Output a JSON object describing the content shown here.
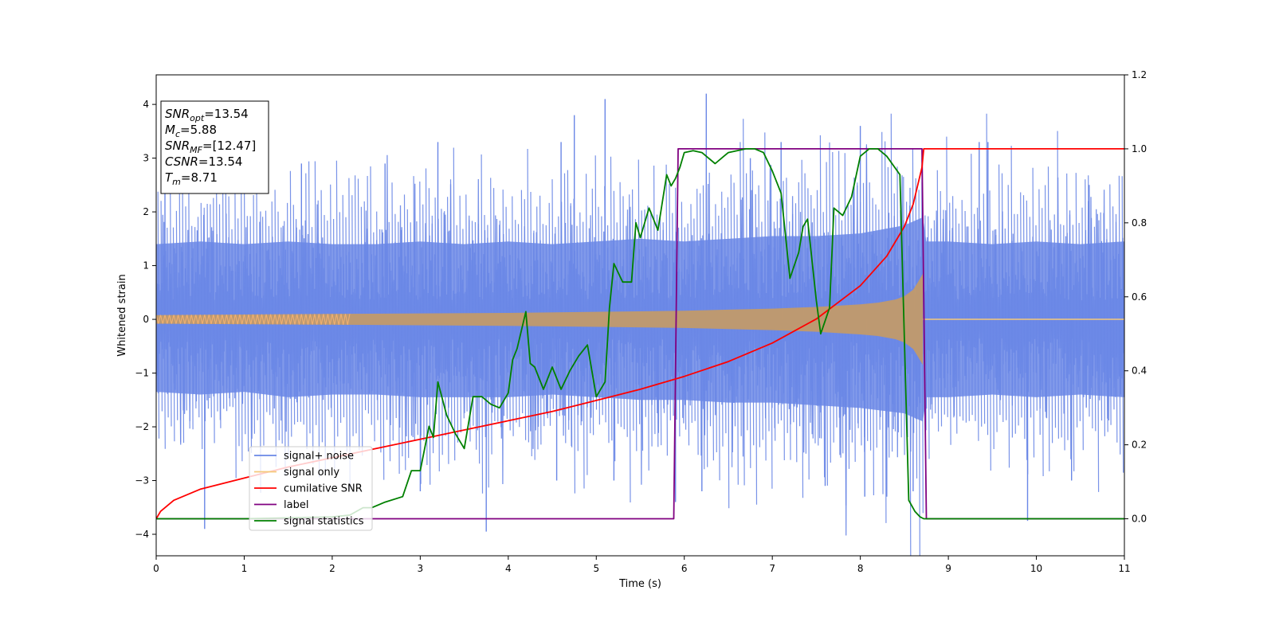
{
  "chart_data": {
    "type": "line",
    "xlabel": "Time (s)",
    "ylabel": "Whitened strain",
    "xlim": [
      0,
      11
    ],
    "ylim_left": [
      -4.4,
      4.55
    ],
    "ylim_right": [
      -0.1,
      1.2
    ],
    "x_ticks": [
      0,
      1,
      2,
      3,
      4,
      5,
      6,
      7,
      8,
      9,
      10,
      11
    ],
    "y_ticks_left": [
      -4,
      -3,
      -2,
      -1,
      0,
      1,
      2,
      3,
      4
    ],
    "y_ticks_right": [
      0.0,
      0.2,
      0.4,
      0.6,
      0.8,
      1.0,
      1.2
    ],
    "grid": false,
    "legend_position": "lower-left",
    "colors": {
      "noise": "#6a87e6",
      "signal": "#f5c97a",
      "cum_snr": "#ff0000",
      "label": "#800080",
      "stats": "#008000"
    },
    "annotation": {
      "lines": [
        {
          "base": "SNR",
          "sub": "opt",
          "value": "=13.54"
        },
        {
          "base": "M",
          "sub": "c",
          "value": "=5.88"
        },
        {
          "base": "SNR",
          "sub": "MF",
          "value": "=[12.47]"
        },
        {
          "base": "CSNR",
          "sub": "",
          "value": "=13.54"
        },
        {
          "base": "T",
          "sub": "m",
          "value": "=8.71"
        }
      ]
    },
    "series": [
      {
        "name": "signal+ noise",
        "axis": "left",
        "envelope": {
          "x": [
            0,
            0.5,
            1,
            1.5,
            2,
            2.5,
            3,
            3.5,
            4,
            4.5,
            5,
            5.5,
            6,
            6.5,
            7,
            7.5,
            8,
            8.5,
            8.71,
            8.75,
            9,
            9.5,
            10,
            10.5,
            11
          ],
          "upper": [
            1.4,
            1.45,
            1.4,
            1.45,
            1.4,
            1.4,
            1.45,
            1.4,
            1.45,
            1.4,
            1.45,
            1.5,
            1.45,
            1.5,
            1.55,
            1.55,
            1.6,
            1.75,
            1.9,
            1.45,
            1.45,
            1.4,
            1.45,
            1.4,
            1.45
          ],
          "lower": [
            -1.35,
            -1.4,
            -1.35,
            -1.45,
            -1.4,
            -1.4,
            -1.45,
            -1.45,
            -1.45,
            -1.4,
            -1.45,
            -1.5,
            -1.5,
            -1.55,
            -1.55,
            -1.6,
            -1.65,
            -1.75,
            -1.9,
            -1.45,
            -1.45,
            -1.4,
            -1.45,
            -1.4,
            -1.45
          ]
        },
        "peaks": [
          {
            "x": 0.55,
            "y": -3.9
          },
          {
            "x": 0.1,
            "y": 2.9
          },
          {
            "x": 1.65,
            "y": 2.9
          },
          {
            "x": 2.6,
            "y": 2.9
          },
          {
            "x": 3.0,
            "y": -3.2
          },
          {
            "x": 3.75,
            "y": -3.95
          },
          {
            "x": 3.2,
            "y": 3.3
          },
          {
            "x": 4.55,
            "y": -3.0
          },
          {
            "x": 4.6,
            "y": 3.3
          },
          {
            "x": 4.75,
            "y": 3.8
          },
          {
            "x": 5.1,
            "y": 4.1
          },
          {
            "x": 5.2,
            "y": -3.0
          },
          {
            "x": 5.9,
            "y": -3.4
          },
          {
            "x": 6.25,
            "y": 4.2
          },
          {
            "x": 6.2,
            "y": -3.2
          },
          {
            "x": 6.75,
            "y": 3.0
          },
          {
            "x": 7.1,
            "y": 3.3
          },
          {
            "x": 7.6,
            "y": -3.1
          },
          {
            "x": 8.0,
            "y": 3.6
          },
          {
            "x": 8.05,
            "y": -3.3
          },
          {
            "x": 8.3,
            "y": -3.3
          },
          {
            "x": 8.6,
            "y": -3.2
          },
          {
            "x": 8.7,
            "y": 3.0
          },
          {
            "x": 9.35,
            "y": 3.3
          },
          {
            "x": 9.45,
            "y": 3.3
          },
          {
            "x": 9.9,
            "y": -3.75
          },
          {
            "x": 10.6,
            "y": 2.5
          },
          {
            "x": 10.4,
            "y": -3.0
          }
        ]
      },
      {
        "name": "signal only",
        "axis": "left",
        "envelope": {
          "x": [
            0,
            1,
            2,
            3,
            4,
            5,
            6,
            6.5,
            7,
            7.5,
            8,
            8.2,
            8.4,
            8.5,
            8.6,
            8.65,
            8.71
          ],
          "amplitude": [
            0.08,
            0.09,
            0.1,
            0.11,
            0.12,
            0.14,
            0.16,
            0.18,
            0.2,
            0.23,
            0.28,
            0.31,
            0.37,
            0.43,
            0.55,
            0.68,
            0.85
          ]
        },
        "after_merger": {
          "x_start": 8.71,
          "value": 0.0
        }
      },
      {
        "name": "cumilative SNR",
        "axis": "right",
        "x": [
          0,
          0.05,
          0.2,
          0.5,
          1,
          1.5,
          2,
          2.5,
          3,
          3.5,
          4,
          4.5,
          5,
          5.5,
          6,
          6.5,
          7,
          7.5,
          8,
          8.3,
          8.5,
          8.6,
          8.7,
          8.72,
          11
        ],
        "values": [
          0.0,
          0.02,
          0.05,
          0.08,
          0.11,
          0.14,
          0.165,
          0.19,
          0.215,
          0.24,
          0.265,
          0.29,
          0.32,
          0.35,
          0.385,
          0.425,
          0.475,
          0.54,
          0.63,
          0.71,
          0.79,
          0.85,
          0.95,
          1.0,
          1.0
        ]
      },
      {
        "name": "label",
        "axis": "right",
        "x": [
          0,
          5.88,
          5.93,
          8.67,
          8.7,
          8.75,
          11
        ],
        "values": [
          0,
          0,
          1,
          1,
          1,
          0,
          0
        ]
      },
      {
        "name": "signal statistics",
        "axis": "right",
        "x": [
          0,
          1,
          2,
          2.2,
          2.35,
          2.45,
          2.6,
          2.8,
          2.9,
          3.0,
          3.1,
          3.15,
          3.2,
          3.3,
          3.4,
          3.5,
          3.6,
          3.7,
          3.8,
          3.9,
          4.0,
          4.05,
          4.1,
          4.2,
          4.25,
          4.3,
          4.4,
          4.5,
          4.6,
          4.7,
          4.8,
          4.9,
          5.0,
          5.1,
          5.15,
          5.2,
          5.3,
          5.4,
          5.45,
          5.5,
          5.6,
          5.7,
          5.8,
          5.85,
          5.9,
          5.95,
          6.0,
          6.1,
          6.2,
          6.35,
          6.45,
          6.5,
          6.6,
          6.7,
          6.8,
          6.9,
          7.0,
          7.1,
          7.2,
          7.3,
          7.35,
          7.4,
          7.5,
          7.55,
          7.65,
          7.7,
          7.8,
          7.9,
          8.0,
          8.05,
          8.1,
          8.2,
          8.3,
          8.45,
          8.55,
          8.62,
          8.68,
          8.72,
          8.75,
          8.8,
          8.85,
          9,
          11
        ],
        "values": [
          0,
          0,
          0.005,
          0.01,
          0.03,
          0.03,
          0.045,
          0.06,
          0.13,
          0.13,
          0.25,
          0.22,
          0.37,
          0.28,
          0.23,
          0.19,
          0.33,
          0.33,
          0.31,
          0.3,
          0.34,
          0.43,
          0.46,
          0.56,
          0.42,
          0.41,
          0.35,
          0.41,
          0.35,
          0.4,
          0.44,
          0.47,
          0.33,
          0.37,
          0.57,
          0.69,
          0.64,
          0.64,
          0.8,
          0.76,
          0.84,
          0.78,
          0.93,
          0.9,
          0.92,
          0.95,
          0.99,
          0.995,
          0.99,
          0.96,
          0.98,
          0.99,
          0.995,
          1.0,
          1.0,
          0.99,
          0.94,
          0.88,
          0.65,
          0.72,
          0.79,
          0.81,
          0.59,
          0.5,
          0.57,
          0.84,
          0.82,
          0.87,
          0.98,
          0.99,
          1.0,
          1.0,
          0.98,
          0.93,
          0.05,
          0.02,
          0.005,
          0,
          0,
          0,
          0,
          0,
          0
        ]
      }
    ]
  }
}
